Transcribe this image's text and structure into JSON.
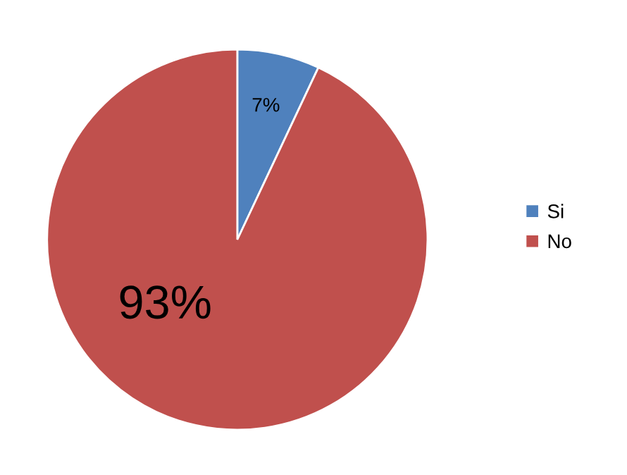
{
  "chart_data": {
    "type": "pie",
    "categories": [
      "Si",
      "No"
    ],
    "values": [
      7,
      93
    ],
    "colors": [
      "#4f81bd",
      "#c0504d"
    ],
    "value_labels": [
      "7%",
      "93%"
    ],
    "legend": "right"
  }
}
